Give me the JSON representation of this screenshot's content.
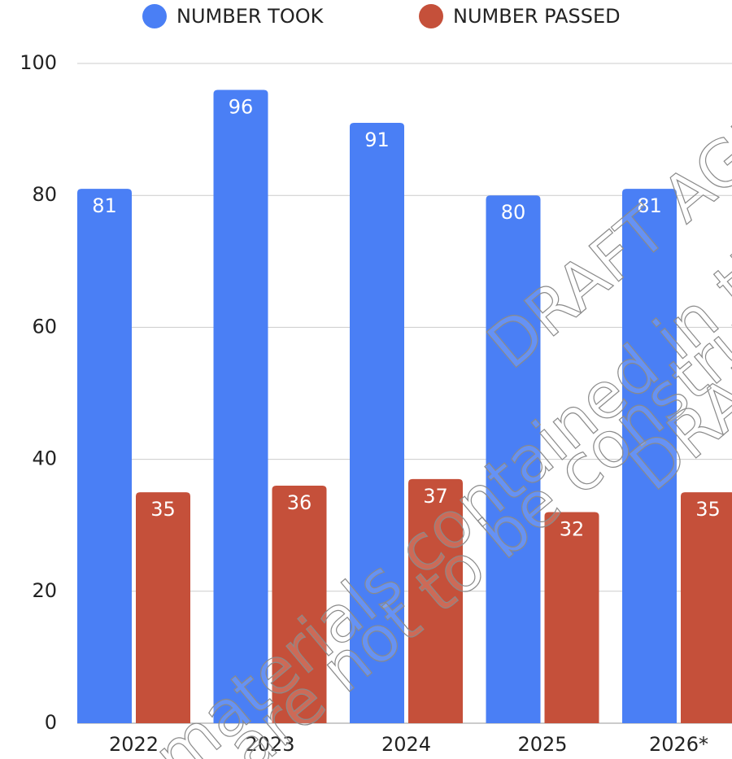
{
  "chart_data": {
    "type": "bar",
    "categories": [
      "2022",
      "2023",
      "2024",
      "2025",
      "2026*"
    ],
    "series": [
      {
        "name": "NUMBER TOOK",
        "color": "#4a7ff5",
        "values": [
          81,
          96,
          91,
          80,
          81
        ]
      },
      {
        "name": "NUMBER PASSED",
        "color": "#c5503a",
        "values": [
          35,
          36,
          37,
          32,
          35
        ]
      }
    ],
    "ylim": [
      0,
      100
    ],
    "yticks": [
      0,
      20,
      40,
      60,
      80,
      100
    ],
    "grid": true,
    "legend": "top",
    "watermark": [
      "DRAFT AGEN",
      "materials contained in this agenda an",
      "are not to be construed as r",
      "DRAF"
    ]
  }
}
